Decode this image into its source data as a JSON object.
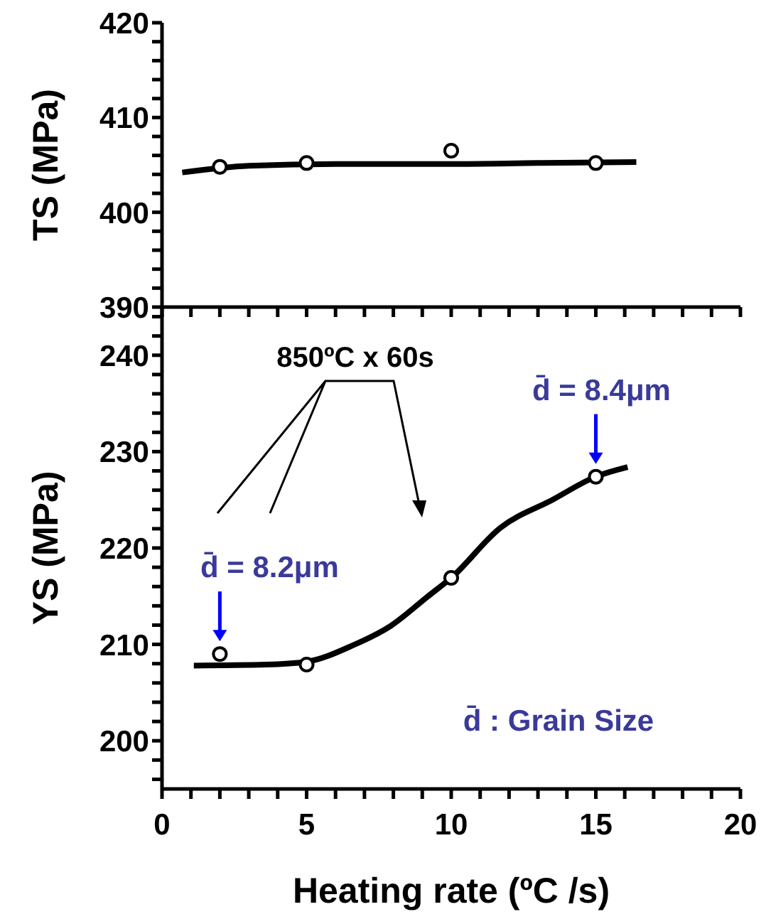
{
  "chart_data": [
    {
      "type": "scatter",
      "ylabel": "TS (MPa)",
      "xlim": [
        0,
        20
      ],
      "xticks": [
        {
          "value": 0,
          "label": null
        },
        {
          "value": 1,
          "label": null
        },
        {
          "value": 2,
          "label": null
        },
        {
          "value": 3,
          "label": null
        },
        {
          "value": 4,
          "label": null
        },
        {
          "value": 5,
          "label": null
        },
        {
          "value": 6,
          "label": null
        },
        {
          "value": 7,
          "label": null
        },
        {
          "value": 8,
          "label": null
        },
        {
          "value": 9,
          "label": null
        },
        {
          "value": 10,
          "label": null
        },
        {
          "value": 11,
          "label": null
        },
        {
          "value": 12,
          "label": null
        },
        {
          "value": 13,
          "label": null
        },
        {
          "value": 14,
          "label": null
        },
        {
          "value": 15,
          "label": null
        },
        {
          "value": 16,
          "label": null
        },
        {
          "value": 17,
          "label": null
        },
        {
          "value": 18,
          "label": null
        },
        {
          "value": 19,
          "label": null
        },
        {
          "value": 20,
          "label": null
        }
      ],
      "ylim": [
        390,
        420
      ],
      "yticks": [
        390,
        {
          "value": 392,
          "label": null
        },
        {
          "value": 394,
          "label": null
        },
        {
          "value": 396,
          "label": null
        },
        {
          "value": 398,
          "label": null
        },
        400,
        {
          "value": 402,
          "label": null
        },
        {
          "value": 404,
          "label": null
        },
        {
          "value": 406,
          "label": null
        },
        {
          "value": 408,
          "label": null
        },
        410,
        {
          "value": 412,
          "label": null
        },
        {
          "value": 414,
          "label": null
        },
        {
          "value": 416,
          "label": null
        },
        {
          "value": 418,
          "label": null
        },
        420
      ],
      "tick_labels": "y",
      "series": [
        {
          "type": "line",
          "color": "#000000",
          "marker": "none",
          "x": [
            0.7,
            3,
            6,
            10,
            13,
            16.4
          ],
          "values": [
            404.2,
            404.9,
            405.1,
            405.1,
            405.2,
            405.3
          ]
        },
        {
          "type": "scatter",
          "color": "#000000",
          "marker": "circle",
          "x": [
            2,
            5,
            10,
            15
          ],
          "values": [
            404.8,
            405.2,
            406.5,
            405.2
          ]
        }
      ]
    },
    {
      "type": "scatter",
      "ylabel": "YS (MPa)",
      "xlabel": "Heating rate (ºC /s)",
      "xlim": [
        0,
        20
      ],
      "xticks": [
        0,
        {
          "value": 1,
          "label": null
        },
        {
          "value": 2,
          "label": null
        },
        {
          "value": 3,
          "label": null
        },
        {
          "value": 4,
          "label": null
        },
        5,
        {
          "value": 6,
          "label": null
        },
        {
          "value": 7,
          "label": null
        },
        {
          "value": 8,
          "label": null
        },
        {
          "value": 9,
          "label": null
        },
        10,
        {
          "value": 11,
          "label": null
        },
        {
          "value": 12,
          "label": null
        },
        {
          "value": 13,
          "label": null
        },
        {
          "value": 14,
          "label": null
        },
        15,
        {
          "value": 16,
          "label": null
        },
        {
          "value": 17,
          "label": null
        },
        {
          "value": 18,
          "label": null
        },
        {
          "value": 19,
          "label": null
        },
        20
      ],
      "ylim": [
        195,
        245
      ],
      "yticks": [
        {
          "value": 196,
          "label": null
        },
        {
          "value": 198,
          "label": null
        },
        200,
        {
          "value": 202,
          "label": null
        },
        {
          "value": 204,
          "label": null
        },
        {
          "value": 206,
          "label": null
        },
        {
          "value": 208,
          "label": null
        },
        210,
        {
          "value": 212,
          "label": null
        },
        {
          "value": 214,
          "label": null
        },
        {
          "value": 216,
          "label": null
        },
        {
          "value": 218,
          "label": null
        },
        220,
        {
          "value": 222,
          "label": null
        },
        {
          "value": 224,
          "label": null
        },
        {
          "value": 226,
          "label": null
        },
        {
          "value": 228,
          "label": null
        },
        230,
        {
          "value": 232,
          "label": null
        },
        {
          "value": 234,
          "label": null
        },
        {
          "value": 236,
          "label": null
        },
        {
          "value": 238,
          "label": null
        },
        240,
        {
          "value": 242,
          "label": null
        },
        {
          "value": 244,
          "label": null
        }
      ],
      "series": [
        {
          "type": "line",
          "color": "#000000",
          "marker": "none",
          "x": [
            1.1,
            3.6,
            5,
            6.6,
            7.9,
            9.2,
            10,
            11.7,
            13.5,
            15,
            16.1
          ],
          "values": [
            207.8,
            207.9,
            208.2,
            209.9,
            211.9,
            215,
            216.9,
            222.1,
            225,
            227.4,
            228.4
          ]
        },
        {
          "type": "scatter",
          "color": "#000000",
          "marker": "circle",
          "x": [
            2,
            5,
            10,
            15
          ],
          "values": [
            209.0,
            207.9,
            216.9,
            227.4
          ]
        }
      ],
      "annotations": [
        "850ºC x 60s",
        "d̄ : Grain Size",
        {
          "text": "d̄ = 8.2μm",
          "x": 2,
          "y": 209.0
        },
        {
          "text": "d̄ = 8.4μm",
          "x": 15,
          "y": 227.4
        }
      ]
    }
  ]
}
